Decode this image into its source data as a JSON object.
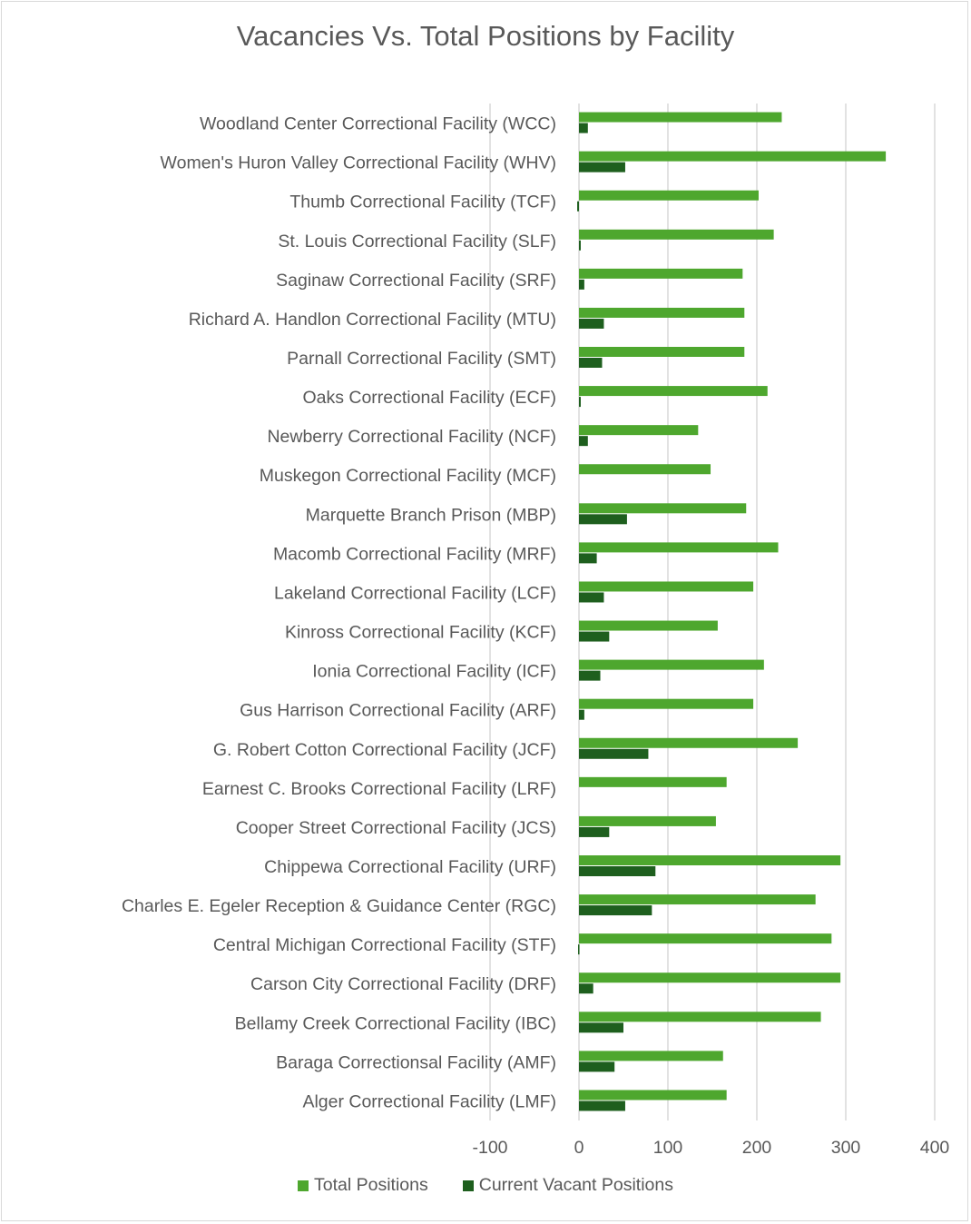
{
  "chart_data": {
    "type": "bar",
    "orientation": "horizontal",
    "title": "Vacancies Vs. Total Positions by Facility",
    "categories": [
      "Woodland Center Correctional Facility (WCC)",
      "Women's Huron Valley Correctional Facility (WHV)",
      "Thumb Correctional Facility (TCF)",
      "St. Louis Correctional Facility (SLF)",
      "Saginaw Correctional Facility (SRF)",
      "Richard A. Handlon Correctional Facility (MTU)",
      "Parnall Correctional Facility (SMT)",
      "Oaks Correctional Facility (ECF)",
      "Newberry Correctional Facility (NCF)",
      "Muskegon Correctional Facility (MCF)",
      "Marquette Branch Prison (MBP)",
      "Macomb Correctional Facility (MRF)",
      "Lakeland Correctional Facility (LCF)",
      "Kinross Correctional Facility (KCF)",
      "Ionia Correctional Facility (ICF)",
      "Gus Harrison Correctional Facility (ARF)",
      "G. Robert Cotton Correctional Facility (JCF)",
      "Earnest C. Brooks Correctional Facility (LRF)",
      "Cooper Street Correctional Facility (JCS)",
      "Chippewa Correctional Facility (URF)",
      "Charles E. Egeler Reception & Guidance Center (RGC)",
      "Central Michigan Correctional Facility (STF)",
      "Carson City Correctional Facility (DRF)",
      "Bellamy Creek Correctional Facility (IBC)",
      "Baraga Correctionsal Facility (AMF)",
      "Alger Correctional Facility (LMF)"
    ],
    "series": [
      {
        "name": "Total Positions",
        "color": "#4ea72e",
        "values": [
          228,
          345,
          202,
          219,
          184,
          186,
          186,
          212,
          134,
          148,
          188,
          224,
          196,
          156,
          208,
          196,
          246,
          166,
          154,
          294,
          266,
          284,
          294,
          272,
          162,
          166
        ]
      },
      {
        "name": "Current Vacant Positions",
        "color": "#1e5f1e",
        "values": [
          10,
          52,
          -2,
          2,
          6,
          28,
          26,
          2,
          10,
          0,
          54,
          20,
          28,
          34,
          24,
          6,
          78,
          0,
          34,
          86,
          82,
          -1,
          16,
          50,
          40,
          52
        ]
      }
    ],
    "xlim": [
      -100,
      400
    ],
    "xticks": [
      "-100",
      "0",
      "100",
      "200",
      "300",
      "400"
    ],
    "grid": true,
    "legend_position": "bottom"
  }
}
